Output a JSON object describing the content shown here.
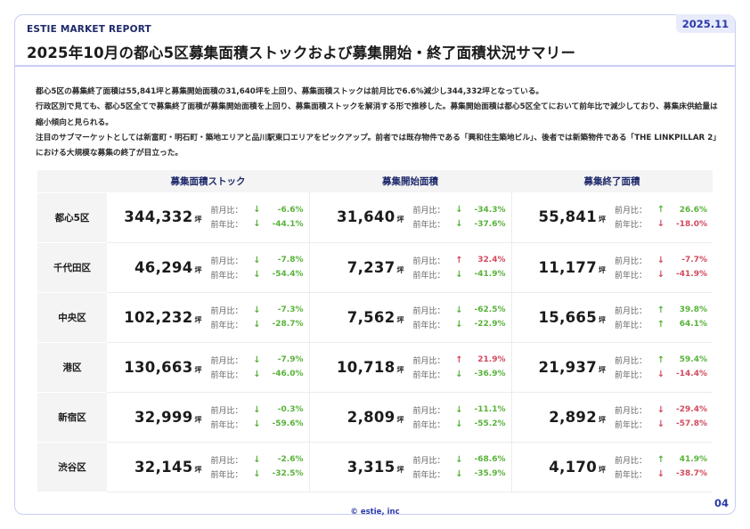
{
  "header": {
    "brand": "ESTIE MARKET REPORT",
    "date": "2025.11",
    "title": "2025年10月の都心5区募集面積ストックおよび募集開始・終了面積状況サマリー"
  },
  "summary": [
    "都心5区の募集終了面積は55,841坪と募集開始面積の31,640坪を上回り、募集面積ストックは前月比で6.6%減少し344,332坪となっている。",
    "行政区別で見ても、都心5区全てで募集終了面積が募集開始面積を上回り、募集面積ストックを解消する形で推移した。募集開始面積は都心5区全てにおいて前年比で減少しており、募集床供給量は縮小傾向と見られる。",
    "注目のサブマーケットとしては新富町・明石町・築地エリアと品川駅東口エリアをピックアップ。前者では既存物件である「興和住生築地ビル」、後者では新築物件である「THE LINKPILLAR 2」における大規模な募集の終了が目立った。"
  ],
  "table": {
    "columns": [
      "募集面積ストック",
      "募集開始面積",
      "募集終了面積"
    ],
    "mom_label": "前月比：",
    "yoy_label": "前年比：",
    "unit": "坪",
    "rows": [
      {
        "area": "都心5区",
        "cells": [
          {
            "value": "344,332",
            "mom": "-6.6%",
            "mom_dir": "down",
            "mom_tone": "pos",
            "yoy": "-44.1%",
            "yoy_dir": "down",
            "yoy_tone": "pos"
          },
          {
            "value": "31,640",
            "mom": "-34.3%",
            "mom_dir": "down",
            "mom_tone": "pos",
            "yoy": "-37.6%",
            "yoy_dir": "down",
            "yoy_tone": "pos"
          },
          {
            "value": "55,841",
            "mom": "26.6%",
            "mom_dir": "up",
            "mom_tone": "pos",
            "yoy": "-18.0%",
            "yoy_dir": "down",
            "yoy_tone": "neg"
          }
        ]
      },
      {
        "area": "千代田区",
        "cells": [
          {
            "value": "46,294",
            "mom": "-7.8%",
            "mom_dir": "down",
            "mom_tone": "pos",
            "yoy": "-54.4%",
            "yoy_dir": "down",
            "yoy_tone": "pos"
          },
          {
            "value": "7,237",
            "mom": "32.4%",
            "mom_dir": "up",
            "mom_tone": "neg",
            "yoy": "-41.9%",
            "yoy_dir": "down",
            "yoy_tone": "pos"
          },
          {
            "value": "11,177",
            "mom": "-7.7%",
            "mom_dir": "down",
            "mom_tone": "neg",
            "yoy": "-41.9%",
            "yoy_dir": "down",
            "yoy_tone": "neg"
          }
        ]
      },
      {
        "area": "中央区",
        "cells": [
          {
            "value": "102,232",
            "mom": "-7.3%",
            "mom_dir": "down",
            "mom_tone": "pos",
            "yoy": "-28.7%",
            "yoy_dir": "down",
            "yoy_tone": "pos"
          },
          {
            "value": "7,562",
            "mom": "-62.5%",
            "mom_dir": "down",
            "mom_tone": "pos",
            "yoy": "-22.9%",
            "yoy_dir": "down",
            "yoy_tone": "pos"
          },
          {
            "value": "15,665",
            "mom": "39.8%",
            "mom_dir": "up",
            "mom_tone": "pos",
            "yoy": "64.1%",
            "yoy_dir": "up",
            "yoy_tone": "pos"
          }
        ]
      },
      {
        "area": "港区",
        "cells": [
          {
            "value": "130,663",
            "mom": "-7.9%",
            "mom_dir": "down",
            "mom_tone": "pos",
            "yoy": "-46.0%",
            "yoy_dir": "down",
            "yoy_tone": "pos"
          },
          {
            "value": "10,718",
            "mom": "21.9%",
            "mom_dir": "up",
            "mom_tone": "neg",
            "yoy": "-36.9%",
            "yoy_dir": "down",
            "yoy_tone": "pos"
          },
          {
            "value": "21,937",
            "mom": "59.4%",
            "mom_dir": "up",
            "mom_tone": "pos",
            "yoy": "-14.4%",
            "yoy_dir": "down",
            "yoy_tone": "neg"
          }
        ]
      },
      {
        "area": "新宿区",
        "cells": [
          {
            "value": "32,999",
            "mom": "-0.3%",
            "mom_dir": "down",
            "mom_tone": "pos",
            "yoy": "-59.6%",
            "yoy_dir": "down",
            "yoy_tone": "pos"
          },
          {
            "value": "2,809",
            "mom": "-11.1%",
            "mom_dir": "down",
            "mom_tone": "pos",
            "yoy": "-55.2%",
            "yoy_dir": "down",
            "yoy_tone": "pos"
          },
          {
            "value": "2,892",
            "mom": "-29.4%",
            "mom_dir": "down",
            "mom_tone": "neg",
            "yoy": "-57.8%",
            "yoy_dir": "down",
            "yoy_tone": "neg"
          }
        ]
      },
      {
        "area": "渋谷区",
        "cells": [
          {
            "value": "32,145",
            "mom": "-2.6%",
            "mom_dir": "down",
            "mom_tone": "pos",
            "yoy": "-32.5%",
            "yoy_dir": "down",
            "yoy_tone": "pos"
          },
          {
            "value": "3,315",
            "mom": "-68.6%",
            "mom_dir": "down",
            "mom_tone": "pos",
            "yoy": "-35.9%",
            "yoy_dir": "down",
            "yoy_tone": "pos"
          },
          {
            "value": "4,170",
            "mom": "41.9%",
            "mom_dir": "up",
            "mom_tone": "pos",
            "yoy": "-38.7%",
            "yoy_dir": "down",
            "yoy_tone": "neg"
          }
        ]
      }
    ]
  },
  "colors": {
    "positive": "#58b23a",
    "negative": "#d24a5e",
    "accent": "#2b3aa8"
  },
  "footer": {
    "copyright": "© estie, inc",
    "page": "04"
  }
}
